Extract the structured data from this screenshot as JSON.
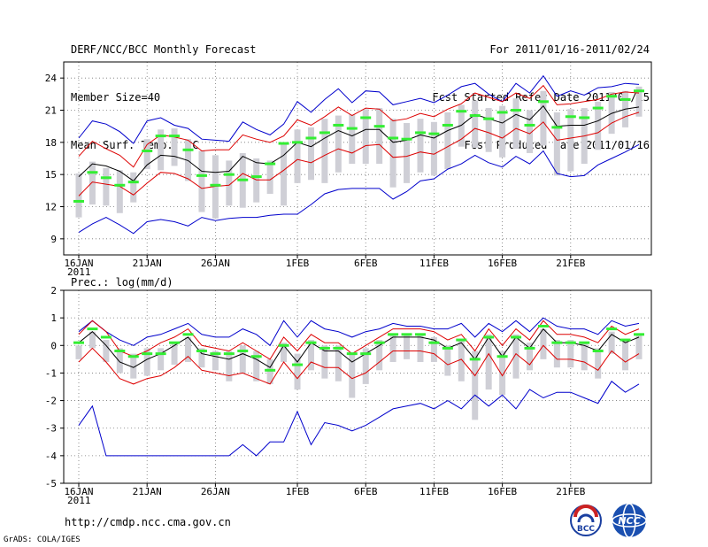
{
  "header": {
    "title": "DERF/NCC/BCC Monthly Forecast",
    "member_size": "Member Size=40",
    "variable": "Mean Surf. Temp.: °C",
    "period": "For 2011/01/16-2011/02/24",
    "fcst_started": "Fcst Started Refer Date 2011/01/15",
    "fcst_produced": "Fcst Produced Date 2011/01/16"
  },
  "footer": {
    "url": "http://cmdp.ncc.cma.gov.cn",
    "credit": "GrADS: COLA/IGES",
    "logo_bcc": "BCC",
    "logo_ncc": "NCC"
  },
  "colors": {
    "mean": "#000000",
    "spread": "#dd0000",
    "envelope": "#0000cc",
    "median": "#33ee33",
    "box": "#cfcfd6"
  },
  "chart_data": [
    {
      "type": "line",
      "title": "Mean Surf. Temp.: °C",
      "ylim": [
        7.5,
        25.5
      ],
      "yticks": [
        9,
        12,
        15,
        18,
        21,
        24
      ],
      "xtick_labels": [
        "16JAN",
        "21JAN",
        "26JAN",
        "1FEB",
        "6FEB",
        "11FEB",
        "16FEB",
        "21FEB"
      ],
      "xtick_days": [
        0,
        5,
        10,
        16,
        21,
        26,
        31,
        36
      ],
      "year_label": "2011",
      "mean": [
        14.8,
        16.0,
        15.8,
        15.3,
        14.4,
        15.9,
        16.8,
        16.7,
        16.3,
        15.3,
        15.2,
        15.3,
        16.7,
        16.1,
        16.0,
        16.8,
        18.0,
        17.6,
        18.4,
        19.1,
        18.6,
        19.2,
        19.2,
        18.0,
        18.2,
        18.7,
        18.4,
        19.1,
        19.6,
        20.6,
        20.2,
        19.8,
        20.6,
        20.1,
        21.4,
        19.5,
        19.6,
        19.6,
        20.0,
        20.7,
        21.1,
        21.3
      ],
      "upper": [
        16.7,
        18.1,
        17.4,
        16.8,
        15.7,
        17.8,
        18.7,
        18.5,
        18.2,
        17.2,
        17.3,
        17.3,
        18.7,
        18.3,
        18.0,
        18.6,
        20.1,
        19.6,
        20.4,
        21.3,
        20.5,
        21.2,
        21.1,
        20.0,
        20.2,
        20.7,
        20.4,
        21.1,
        21.6,
        22.6,
        22.2,
        21.8,
        22.6,
        22.1,
        23.3,
        21.5,
        21.6,
        21.8,
        22.0,
        22.5,
        22.7,
        22.6
      ],
      "lower": [
        13.0,
        14.3,
        14.1,
        13.9,
        13.1,
        14.2,
        15.2,
        15.1,
        14.6,
        13.7,
        13.9,
        14.0,
        15.1,
        14.5,
        14.5,
        15.4,
        16.4,
        16.1,
        16.8,
        17.4,
        17.0,
        17.7,
        17.8,
        16.6,
        16.7,
        17.1,
        16.9,
        17.6,
        18.3,
        19.3,
        18.9,
        18.4,
        19.3,
        18.8,
        19.9,
        18.2,
        18.4,
        18.6,
        18.9,
        19.8,
        20.4,
        20.8
      ],
      "max": [
        18.4,
        20.0,
        19.7,
        19.0,
        17.9,
        20.0,
        20.3,
        19.6,
        19.3,
        18.3,
        18.2,
        18.1,
        19.9,
        19.2,
        18.7,
        19.7,
        21.8,
        20.8,
        22.0,
        23.0,
        21.7,
        22.8,
        22.7,
        21.5,
        21.8,
        22.1,
        21.7,
        22.4,
        23.2,
        23.5,
        22.5,
        21.8,
        23.5,
        22.6,
        24.2,
        22.3,
        22.8,
        22.4,
        23.1,
        23.2,
        23.5,
        23.4
      ],
      "min": [
        9.6,
        10.4,
        11.0,
        10.3,
        9.5,
        10.6,
        10.8,
        10.6,
        10.2,
        11.0,
        10.7,
        10.9,
        11.0,
        11.0,
        11.2,
        11.3,
        11.3,
        12.2,
        13.2,
        13.6,
        13.7,
        13.7,
        13.7,
        12.7,
        13.4,
        14.4,
        14.6,
        15.5,
        16.0,
        16.8,
        16.1,
        15.7,
        16.7,
        16.0,
        17.2,
        15.1,
        14.8,
        14.9,
        15.9,
        16.5,
        17.1,
        17.8
      ],
      "median": [
        12.5,
        15.2,
        14.7,
        14.0,
        14.3,
        17.2,
        18.6,
        18.6,
        17.3,
        14.9,
        14.0,
        15.0,
        14.5,
        14.8,
        16.0,
        17.9,
        18.0,
        18.4,
        18.9,
        19.6,
        19.3,
        20.3,
        19.5,
        18.4,
        18.3,
        18.9,
        18.8,
        19.6,
        20.9,
        20.5,
        20.2,
        20.8,
        21.0,
        19.6,
        21.8,
        19.4,
        20.4,
        20.3,
        21.2,
        22.3,
        22.0,
        22.8
      ],
      "box_hi": [
        15.1,
        16.2,
        15.6,
        15.4,
        15.2,
        18.3,
        19.2,
        19.3,
        18.3,
        17.2,
        16.8,
        16.3,
        17.0,
        16.5,
        16.3,
        17.8,
        19.2,
        19.4,
        20.2,
        20.5,
        20.6,
        21.1,
        21.2,
        20.2,
        19.8,
        20.2,
        19.9,
        20.8,
        21.5,
        21.9,
        21.2,
        21.4,
        22.1,
        21.0,
        22.8,
        20.8,
        21.1,
        21.2,
        21.8,
        22.7,
        22.8,
        23.2
      ],
      "box_lo": [
        11.0,
        12.2,
        12.1,
        11.4,
        12.4,
        15.5,
        15.4,
        15.8,
        14.4,
        11.5,
        10.9,
        12.1,
        11.9,
        12.4,
        13.2,
        12.1,
        14.2,
        14.5,
        14.2,
        15.2,
        16.0,
        16.0,
        16.0,
        13.8,
        14.2,
        15.2,
        14.9,
        15.5,
        17.6,
        17.5,
        17.1,
        16.6,
        17.4,
        17.0,
        17.7,
        14.9,
        15.3,
        16.0,
        17.3,
        18.8,
        19.4,
        20.4
      ]
    },
    {
      "type": "line",
      "title": "Prec.: log(mm/d)",
      "ylim": [
        -5,
        2
      ],
      "yticks": [
        -5,
        -4,
        -3,
        -2,
        -1,
        0,
        1,
        2
      ],
      "xtick_labels": [
        "16JAN",
        "21JAN",
        "26JAN",
        "1FEB",
        "6FEB",
        "11FEB",
        "16FEB",
        "21FEB"
      ],
      "xtick_days": [
        0,
        5,
        10,
        16,
        21,
        26,
        31,
        36
      ],
      "year_label": "2011",
      "mean": [
        0.1,
        0.5,
        0.0,
        -0.6,
        -0.8,
        -0.5,
        -0.3,
        0.0,
        0.3,
        -0.3,
        -0.4,
        -0.5,
        -0.3,
        -0.5,
        -0.8,
        0.0,
        -0.6,
        0.1,
        -0.2,
        -0.2,
        -0.6,
        -0.3,
        0.0,
        0.3,
        0.3,
        0.3,
        0.2,
        -0.1,
        0.1,
        -0.5,
        0.3,
        -0.4,
        0.3,
        -0.1,
        0.6,
        0.1,
        0.1,
        0.0,
        -0.2,
        0.4,
        0.1,
        0.3
      ],
      "upper": [
        0.4,
        0.9,
        0.5,
        -0.2,
        -0.4,
        -0.2,
        0.1,
        0.3,
        0.6,
        0.0,
        -0.1,
        -0.2,
        0.1,
        -0.2,
        -0.5,
        0.3,
        -0.2,
        0.4,
        0.1,
        0.1,
        -0.3,
        0.0,
        0.3,
        0.6,
        0.6,
        0.6,
        0.5,
        0.2,
        0.4,
        -0.2,
        0.6,
        0.0,
        0.6,
        0.2,
        0.9,
        0.4,
        0.4,
        0.3,
        0.1,
        0.7,
        0.4,
        0.6
      ],
      "lower": [
        -0.6,
        -0.1,
        -0.6,
        -1.2,
        -1.4,
        -1.2,
        -1.1,
        -0.8,
        -0.4,
        -0.9,
        -1.0,
        -1.1,
        -1.0,
        -1.2,
        -1.4,
        -0.6,
        -1.2,
        -0.6,
        -0.8,
        -0.8,
        -1.2,
        -1.0,
        -0.6,
        -0.2,
        -0.2,
        -0.2,
        -0.3,
        -0.7,
        -0.5,
        -1.1,
        -0.3,
        -1.1,
        -0.3,
        -0.7,
        0.0,
        -0.5,
        -0.5,
        -0.6,
        -0.9,
        -0.2,
        -0.6,
        -0.3
      ],
      "max": [
        0.5,
        0.9,
        0.5,
        0.2,
        0.0,
        0.3,
        0.4,
        0.6,
        0.8,
        0.4,
        0.3,
        0.3,
        0.6,
        0.4,
        0.0,
        0.9,
        0.3,
        0.9,
        0.6,
        0.5,
        0.3,
        0.5,
        0.6,
        0.8,
        0.7,
        0.7,
        0.6,
        0.6,
        0.8,
        0.3,
        0.8,
        0.5,
        0.9,
        0.5,
        1.0,
        0.7,
        0.6,
        0.6,
        0.4,
        0.9,
        0.7,
        0.8
      ],
      "min": [
        -2.9,
        -2.2,
        -4.0,
        -4.0,
        -4.0,
        -4.0,
        -4.0,
        -4.0,
        -4.0,
        -4.0,
        -4.0,
        -4.0,
        -3.6,
        -4.0,
        -3.5,
        -3.5,
        -2.4,
        -3.6,
        -2.8,
        -2.9,
        -3.1,
        -2.9,
        -2.6,
        -2.3,
        -2.2,
        -2.1,
        -2.3,
        -2.0,
        -2.3,
        -1.8,
        -2.2,
        -1.8,
        -2.3,
        -1.6,
        -1.9,
        -1.7,
        -1.7,
        -1.9,
        -2.1,
        -1.3,
        -1.7,
        -1.4
      ],
      "median": [
        0.1,
        0.6,
        0.3,
        -0.2,
        -0.4,
        -0.3,
        -0.3,
        0.1,
        0.4,
        -0.2,
        -0.3,
        -0.3,
        -0.2,
        -0.4,
        -0.9,
        0.0,
        -0.7,
        0.1,
        -0.1,
        -0.1,
        -0.3,
        -0.3,
        0.1,
        0.4,
        0.4,
        0.4,
        0.1,
        -0.1,
        0.2,
        -0.5,
        0.3,
        -0.4,
        0.3,
        -0.1,
        0.7,
        0.1,
        0.1,
        0.1,
        -0.2,
        0.6,
        0.2,
        0.4
      ],
      "box_hi": [
        0.0,
        0.5,
        0.2,
        -0.1,
        -0.3,
        -0.1,
        -0.1,
        0.1,
        0.3,
        -0.1,
        -0.2,
        -0.2,
        0.0,
        -0.2,
        -0.5,
        0.1,
        -0.3,
        0.2,
        0.0,
        0.0,
        -0.3,
        -0.1,
        0.2,
        0.4,
        0.4,
        0.4,
        0.3,
        0.0,
        0.2,
        -0.2,
        0.4,
        -0.2,
        0.4,
        0.1,
        0.6,
        0.2,
        0.2,
        0.1,
        -0.1,
        0.5,
        0.2,
        0.4
      ],
      "box_lo": [
        -0.5,
        -0.1,
        -0.6,
        -1.0,
        -1.2,
        -1.1,
        -0.9,
        -0.7,
        -0.6,
        -0.8,
        -0.9,
        -1.3,
        -1.0,
        -1.3,
        -1.4,
        -0.6,
        -1.6,
        -0.9,
        -1.2,
        -1.3,
        -1.9,
        -1.4,
        -0.9,
        -0.6,
        -0.5,
        -0.6,
        -0.6,
        -1.1,
        -1.3,
        -2.7,
        -1.6,
        -1.8,
        -1.2,
        -0.9,
        -0.5,
        -0.8,
        -0.8,
        -0.9,
        -1.2,
        -0.3,
        -0.9,
        -0.5
      ]
    }
  ]
}
